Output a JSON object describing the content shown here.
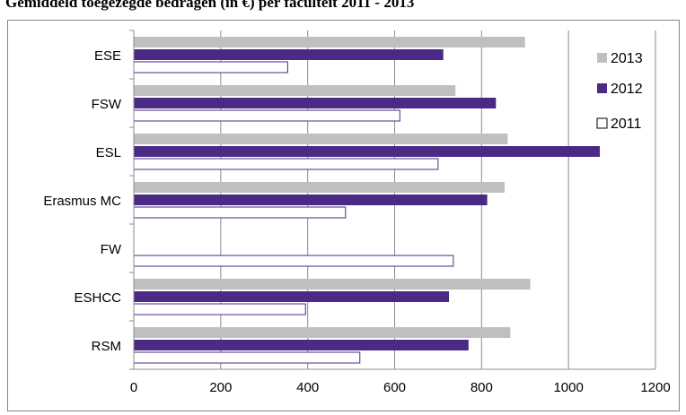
{
  "chart_data": {
    "type": "bar",
    "orientation": "horizontal",
    "title": "Gemiddeld toegezegde bedragen (in €) per faculteit 2011 - 2013",
    "categories": [
      "ESE",
      "FSW",
      "ESL",
      "Erasmus MC",
      "FW",
      "ESHCC",
      "RSM"
    ],
    "series": [
      {
        "name": "2013",
        "color": "#bfbfbf",
        "values": [
          900,
          740,
          860,
          853,
          0,
          912,
          866
        ]
      },
      {
        "name": "2012",
        "color": "#4b2a86",
        "values": [
          712,
          833,
          1072,
          813,
          0,
          725,
          770
        ]
      },
      {
        "name": "2011",
        "color": "#ffffff",
        "stroke": "#4b2a86",
        "values": [
          354,
          612,
          700,
          487,
          735,
          395,
          520
        ]
      }
    ],
    "xlim": [
      0,
      1200
    ],
    "xticks": [
      "0",
      "200",
      "400",
      "600",
      "800",
      "1000",
      "1200"
    ],
    "grid": "vertical",
    "legend": "right",
    "legend_markers": {
      "2013": "■",
      "2012": "■",
      "2011": "□"
    }
  }
}
